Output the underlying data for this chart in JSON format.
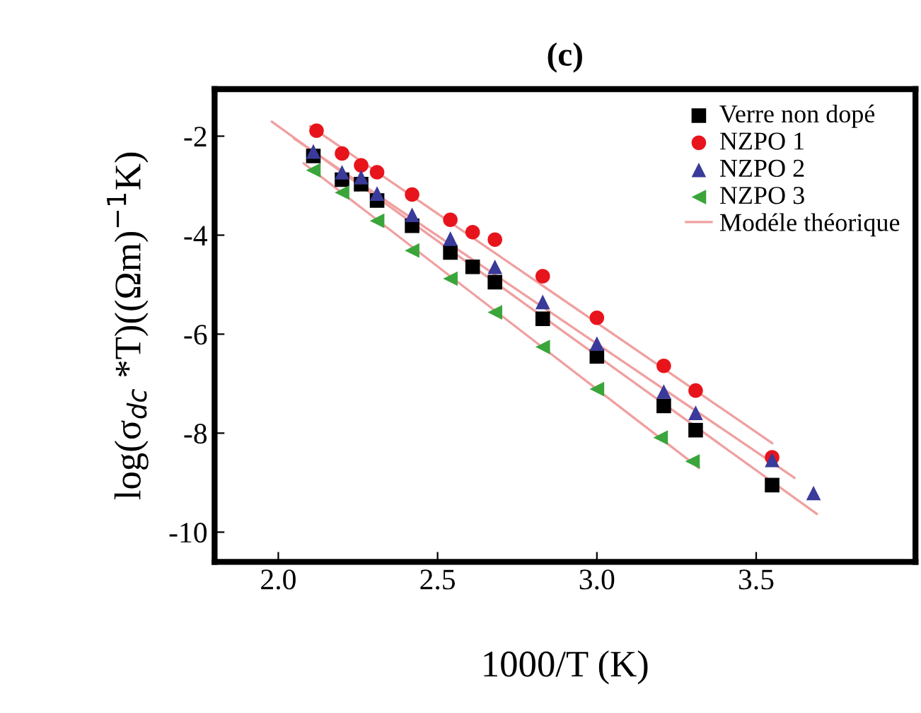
{
  "chart_data": {
    "type": "scatter",
    "title": "(c)",
    "xlabel": "1000/T (K)",
    "ylabel": "log(σ$_{dc}$ *T)((Ωm)$^{−1}$K)",
    "xlim": [
      1.8,
      4.0
    ],
    "ylim": [
      -10.6,
      -1.05
    ],
    "xticks": [
      {
        "value": 2.0,
        "label": "2.0"
      },
      {
        "value": 2.5,
        "label": "2.5"
      },
      {
        "value": 3.0,
        "label": "3.0"
      },
      {
        "value": 3.5,
        "label": "3.5"
      }
    ],
    "yticks": [
      -2,
      -4,
      -6,
      -8,
      -10
    ],
    "grid": false,
    "legend": "top right",
    "series": [
      {
        "name": "Verre non dopé",
        "color": "#000000",
        "marker": "square",
        "x": [
          2.11,
          2.2,
          2.26,
          2.31,
          2.42,
          2.54,
          2.61,
          2.68,
          2.83,
          3.0,
          3.21,
          3.31,
          3.55
        ],
        "values": [
          -2.4,
          -2.88,
          -2.97,
          -3.3,
          -3.81,
          -4.35,
          -4.64,
          -4.95,
          -5.69,
          -6.45,
          -7.45,
          -7.94,
          -9.05
        ]
      },
      {
        "name": "NZPO 1",
        "color": "#e8141c",
        "marker": "circle",
        "x": [
          2.12,
          2.2,
          2.26,
          2.31,
          2.42,
          2.54,
          2.61,
          2.68,
          2.83,
          3.0,
          3.21,
          3.31,
          3.55
        ],
        "values": [
          -1.89,
          -2.35,
          -2.59,
          -2.73,
          -3.18,
          -3.69,
          -3.94,
          -4.09,
          -4.83,
          -5.67,
          -6.64,
          -7.14,
          -8.49
        ]
      },
      {
        "name": "NZPO 2",
        "color": "#3a3a9a",
        "marker": "triangle",
        "x": [
          2.11,
          2.2,
          2.26,
          2.31,
          2.42,
          2.54,
          2.68,
          2.83,
          3.0,
          3.21,
          3.31,
          3.55,
          3.68
        ],
        "values": [
          -2.31,
          -2.73,
          -2.83,
          -3.16,
          -3.59,
          -4.07,
          -4.64,
          -5.35,
          -6.19,
          -7.16,
          -7.59,
          -8.54,
          -9.21
        ]
      },
      {
        "name": "NZPO 3",
        "color": "#3aa53a",
        "marker": "triangle-left",
        "x": [
          2.11,
          2.2,
          2.31,
          2.42,
          2.54,
          2.68,
          2.83,
          3.0,
          3.2,
          3.3
        ],
        "values": [
          -2.69,
          -3.14,
          -3.71,
          -4.31,
          -4.88,
          -5.56,
          -6.26,
          -7.11,
          -8.09,
          -8.57
        ]
      },
      {
        "name": "Modéle théorique",
        "type": "line",
        "color": "#f0a0a0",
        "marker": "none",
        "x": [
          2.1,
          3.55
        ],
        "values": [
          -1.8,
          -8.2
        ]
      },
      {
        "type": "line",
        "color": "#f0a0a0",
        "marker": "none",
        "x": [
          2.05,
          3.62
        ],
        "values": [
          -2.05,
          -8.9
        ]
      },
      {
        "type": "line",
        "color": "#f0a0a0",
        "marker": "none",
        "x": [
          1.98,
          3.69
        ],
        "values": [
          -1.71,
          -9.63
        ]
      },
      {
        "type": "line",
        "color": "#f0a0a0",
        "marker": "none",
        "x": [
          2.08,
          3.32
        ],
        "values": [
          -2.55,
          -8.7
        ]
      }
    ]
  }
}
